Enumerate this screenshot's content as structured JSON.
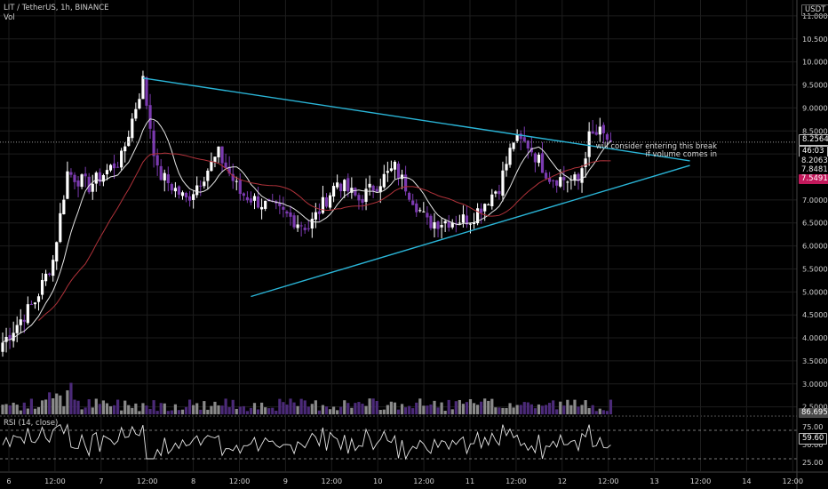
{
  "header": {
    "symbol_line": "LIT / TetherUS, 1h, BINANCE",
    "volume_label": "Vol",
    "rsi_label": "RSI (14, close)"
  },
  "currency": "USDT",
  "annotation": {
    "line1": "will consider entering this break",
    "line2": "if volume comes in"
  },
  "price_tags": {
    "last_price": "8.2564",
    "countdown": "46:03",
    "ma_fast": "8.2063",
    "ma_slow": "7.8481",
    "trend_value": "7.5491",
    "volume_value": "86.695K",
    "rsi_value": "59.60"
  },
  "colors": {
    "background": "#000000",
    "candle_up": "#ffffff",
    "candle_down": "#7b3ab0",
    "ma_fast": "#e6e6e6",
    "ma_slow": "#b0323a",
    "trendline": "#2ab4d6",
    "tag_red": "#c2185b"
  },
  "chart_data": [
    {
      "type": "candlestick",
      "y_axis_ticks": [
        "11.0000",
        "10.5000",
        "10.0000",
        "9.5000",
        "9.0000",
        "8.5000",
        "8.0000",
        "7.5000",
        "7.0000",
        "6.5000",
        "6.0000",
        "5.5000",
        "5.0000",
        "4.5000",
        "4.0000",
        "3.5000",
        "3.0000",
        "2.5000"
      ],
      "ylim": [
        2.3,
        11.25
      ],
      "x_axis_ticks": [
        "6",
        "12:00",
        "7",
        "12:00",
        "8",
        "12:00",
        "9",
        "12:00",
        "10",
        "12:00",
        "11",
        "12:00",
        "12",
        "12:00",
        "13",
        "12:00",
        "14",
        "12:00"
      ],
      "anchors": [
        {
          "x": 0,
          "price": 3.9
        },
        {
          "x": 9,
          "price": 4.8
        },
        {
          "x": 14,
          "price": 5.7
        },
        {
          "x": 18,
          "price": 7.6
        },
        {
          "x": 24,
          "price": 7.3
        },
        {
          "x": 33,
          "price": 7.9
        },
        {
          "x": 39,
          "price": 9.6
        },
        {
          "x": 43,
          "price": 7.6
        },
        {
          "x": 51,
          "price": 7.0
        },
        {
          "x": 60,
          "price": 8.0
        },
        {
          "x": 66,
          "price": 7.15
        },
        {
          "x": 78,
          "price": 6.7
        },
        {
          "x": 85,
          "price": 6.4
        },
        {
          "x": 93,
          "price": 7.4
        },
        {
          "x": 99,
          "price": 7.0
        },
        {
          "x": 109,
          "price": 7.7
        },
        {
          "x": 118,
          "price": 6.5
        },
        {
          "x": 130,
          "price": 6.6
        },
        {
          "x": 138,
          "price": 7.3
        },
        {
          "x": 142,
          "price": 8.3
        },
        {
          "x": 146,
          "price": 8.2
        },
        {
          "x": 152,
          "price": 7.5
        },
        {
          "x": 160,
          "price": 7.4
        },
        {
          "x": 163,
          "price": 8.35
        },
        {
          "x": 166,
          "price": 8.45
        },
        {
          "x": 169,
          "price": 8.26
        }
      ],
      "trendlines": [
        {
          "name": "upper",
          "from": {
            "x": 39,
            "price": 9.65
          },
          "to": {
            "x": 191,
            "price": 7.85
          }
        },
        {
          "name": "lower",
          "from": {
            "x": 69,
            "price": 4.9
          },
          "to": {
            "x": 191,
            "price": 7.75
          }
        }
      ],
      "horizontal_level": 8.2564,
      "grid": true
    },
    {
      "type": "line",
      "name_text": "RSI (14, close)",
      "y_axis_ticks": [
        "75.00",
        "50.00",
        "25.00"
      ],
      "ylim": [
        15,
        85
      ],
      "levels": [
        70,
        30
      ]
    }
  ]
}
